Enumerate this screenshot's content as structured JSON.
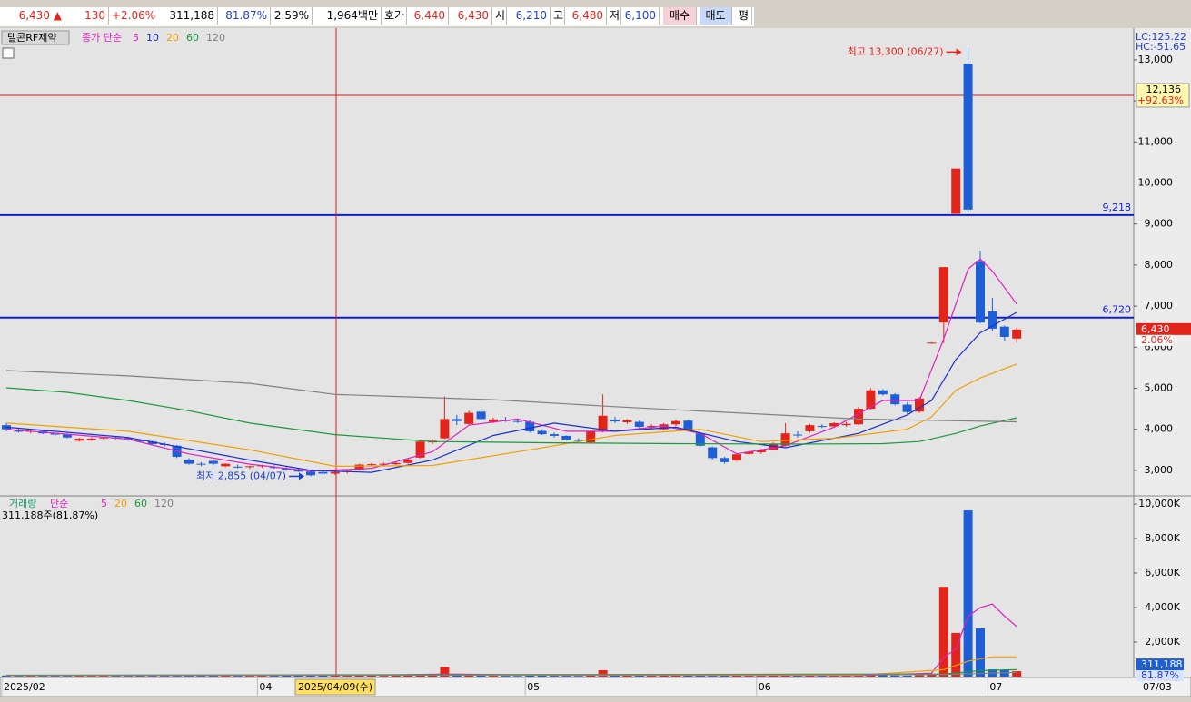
{
  "info_bar": [
    {
      "text": "6,430 ▲",
      "color": "#e3241b"
    },
    {
      "text": "130",
      "color": "#e3241b"
    },
    {
      "text": "+2.06%",
      "color": "#e3241b"
    },
    {
      "text": "311,188",
      "color": "#000000"
    },
    {
      "text": "81.87%",
      "color": "#1e3fd0"
    },
    {
      "text": "2.59%",
      "color": "#000000"
    },
    {
      "text": "1,964백만",
      "color": "#000000"
    },
    {
      "text": "호가",
      "color": "#000000"
    },
    {
      "text": "6,440",
      "color": "#e3241b"
    },
    {
      "text": "6,430",
      "color": "#e3241b"
    },
    {
      "text": "시",
      "color": "#000000"
    },
    {
      "text": "6,210",
      "color": "#1e3fd0"
    },
    {
      "text": "고",
      "color": "#000000"
    },
    {
      "text": "6,480",
      "color": "#e3241b"
    },
    {
      "text": "저",
      "color": "#000000"
    },
    {
      "text": "6,100",
      "color": "#1e3fd0"
    },
    {
      "text": "매수",
      "color": "#000000"
    },
    {
      "text": "매도",
      "color": "#000000"
    },
    {
      "text": "평",
      "color": "#000000"
    }
  ],
  "chart_data": [
    {
      "type": "candlestick",
      "title": "텔콘RF제약",
      "subtitle": "종가 단순",
      "indicators": [
        "LC:125.22",
        "HC:-51.65"
      ],
      "categories": [
        "2025/02",
        null,
        null,
        null,
        null,
        null,
        null,
        null,
        null,
        null,
        null,
        null,
        null,
        null,
        null,
        null,
        null,
        null,
        null,
        null,
        null,
        "04",
        null,
        null,
        null,
        null,
        null,
        null,
        null,
        null,
        null,
        null,
        null,
        null,
        null,
        null,
        null,
        null,
        null,
        null,
        null,
        null,
        null,
        "05",
        null,
        null,
        null,
        null,
        null,
        null,
        null,
        null,
        null,
        null,
        null,
        null,
        null,
        null,
        null,
        null,
        null,
        null,
        "06",
        null,
        null,
        null,
        null,
        null,
        null,
        null,
        null,
        null,
        null,
        null,
        null,
        null,
        null,
        null,
        null,
        null,
        null,
        "07",
        null,
        null
      ],
      "x_end_label": "07/03",
      "open": [
        4100,
        3990,
        3950,
        3960,
        3900,
        3870,
        3720,
        3730,
        3780,
        3800,
        3790,
        3730,
        3700,
        3640,
        3600,
        3260,
        3160,
        3230,
        3100,
        3090,
        3090,
        3100,
        3080,
        3050,
        3010,
        2970,
        2960,
        2920,
        2960,
        3020,
        3130,
        3150,
        3150,
        3180,
        3310,
        3680,
        3780,
        4250,
        4130,
        4430,
        4180,
        4220,
        4200,
        4180,
        3960,
        3880,
        3840,
        3740,
        3680,
        3950,
        4230,
        4170,
        4180,
        4060,
        4000,
        4120,
        4210,
        3900,
        3560,
        3300,
        3240,
        3400,
        3440,
        3500,
        3600,
        3870,
        3950,
        4080,
        4070,
        4100,
        4120,
        4500,
        4950,
        4850,
        4600,
        4430,
        6100,
        6600,
        9250,
        12900,
        8100,
        6870,
        6500,
        6210
      ],
      "high": [
        4150,
        4020,
        3990,
        3980,
        3930,
        3880,
        3790,
        3800,
        3820,
        3830,
        3820,
        3760,
        3720,
        3680,
        3620,
        3300,
        3200,
        3250,
        3170,
        3140,
        3110,
        3140,
        3120,
        3080,
        3050,
        3000,
        2980,
        2990,
        3020,
        3160,
        3180,
        3190,
        3200,
        3300,
        3720,
        3760,
        4800,
        4350,
        4450,
        4500,
        4280,
        4300,
        4260,
        4220,
        4000,
        3920,
        3850,
        3780,
        3990,
        4850,
        4300,
        4250,
        4220,
        4120,
        4150,
        4240,
        4230,
        3920,
        3580,
        3330,
        3420,
        3480,
        3520,
        3680,
        4150,
        3950,
        4130,
        4120,
        4170,
        4180,
        4550,
        5000,
        4980,
        4880,
        4650,
        4780,
        6120,
        7950,
        10350,
        13300,
        8350,
        7200,
        6530,
        6480
      ],
      "low": [
        3950,
        3920,
        3900,
        3880,
        3840,
        3780,
        3700,
        3720,
        3750,
        3760,
        3720,
        3680,
        3620,
        3580,
        3300,
        3140,
        3100,
        3120,
        3080,
        3050,
        3040,
        3060,
        3040,
        2990,
        2960,
        2855,
        2880,
        2890,
        2920,
        3000,
        3100,
        3110,
        3130,
        3160,
        3290,
        3640,
        3760,
        4100,
        4100,
        4220,
        4150,
        4180,
        4150,
        3920,
        3860,
        3800,
        3720,
        3680,
        3660,
        3920,
        4150,
        4130,
        4030,
        4020,
        3980,
        4080,
        3940,
        3580,
        3260,
        3160,
        3220,
        3360,
        3400,
        3480,
        3580,
        3800,
        3920,
        4030,
        4050,
        4060,
        4100,
        4480,
        4820,
        4580,
        4380,
        4400,
        6080,
        6100,
        9220,
        9300,
        6580,
        6400,
        6150,
        6100
      ],
      "close": [
        4000,
        3940,
        3960,
        3900,
        3870,
        3800,
        3770,
        3770,
        3800,
        3780,
        3740,
        3700,
        3640,
        3620,
        3330,
        3160,
        3140,
        3160,
        3160,
        3080,
        3100,
        3120,
        3060,
        3010,
        2970,
        2880,
        2920,
        2960,
        2990,
        3140,
        3150,
        3160,
        3180,
        3260,
        3700,
        3720,
        4250,
        4200,
        4400,
        4250,
        4240,
        4200,
        4180,
        3950,
        3880,
        3840,
        3750,
        3720,
        3950,
        4330,
        4190,
        4230,
        4060,
        4080,
        4120,
        4200,
        3960,
        3600,
        3300,
        3200,
        3390,
        3450,
        3500,
        3650,
        3900,
        3850,
        4100,
        4070,
        4150,
        4130,
        4500,
        4950,
        4850,
        4610,
        4420,
        4750,
        6110,
        7950,
        10350,
        9350,
        6600,
        6450,
        6250,
        6430
      ],
      "up_color": "#e3241b",
      "down_color": "#1e5fd8",
      "ylim": [
        2400,
        13750
      ],
      "yticks": [
        {
          "value": 3000,
          "label": "3,000"
        },
        {
          "value": 4000,
          "label": "4,000"
        },
        {
          "value": 5000,
          "label": "5,000"
        },
        {
          "value": 6000,
          "label": "6,000"
        },
        {
          "value": 7000,
          "label": "7,000"
        },
        {
          "value": 8000,
          "label": "8,000"
        },
        {
          "value": 9000,
          "label": "9,000"
        },
        {
          "value": 10000,
          "label": "10,000"
        },
        {
          "value": 11000,
          "label": "11,000"
        },
        {
          "value": 12000,
          "label": "12,000"
        },
        {
          "value": 13000,
          "label": "13,000"
        }
      ],
      "moving_averages": [
        {
          "name": "5",
          "color": "#e020c0",
          "x": [
            0,
            5,
            10,
            15,
            20,
            25,
            30,
            35,
            38,
            42,
            46,
            50,
            54,
            57,
            60,
            64,
            68,
            72,
            75,
            77,
            79,
            80,
            81,
            83
          ],
          "values": [
            4000,
            3880,
            3760,
            3400,
            3150,
            2980,
            3050,
            3450,
            4100,
            4250,
            3950,
            3950,
            4080,
            3900,
            3400,
            3600,
            4050,
            4700,
            4700,
            6200,
            7900,
            8150,
            7850,
            7050
          ]
        },
        {
          "name": "10",
          "color": "#1a2fd0",
          "x": [
            0,
            10,
            20,
            25,
            30,
            35,
            40,
            45,
            50,
            55,
            60,
            64,
            70,
            74,
            76,
            78,
            80,
            83
          ],
          "values": [
            4050,
            3800,
            3250,
            3000,
            2950,
            3250,
            3850,
            4150,
            3950,
            4050,
            3700,
            3550,
            3900,
            4350,
            4700,
            5700,
            6350,
            6850
          ]
        },
        {
          "name": "20",
          "color": "#f0a000",
          "x": [
            0,
            10,
            20,
            27,
            35,
            43,
            50,
            57,
            62,
            68,
            74,
            76,
            78,
            80,
            83
          ],
          "values": [
            4150,
            3950,
            3500,
            3100,
            3120,
            3500,
            3850,
            4000,
            3700,
            3780,
            4000,
            4300,
            4950,
            5250,
            5590
          ]
        },
        {
          "name": "60",
          "color": "#1a9a3a",
          "x": [
            0,
            5,
            10,
            15,
            20,
            27,
            35,
            45,
            55,
            65,
            72,
            75,
            78,
            80,
            83
          ],
          "values": [
            5010,
            4900,
            4700,
            4450,
            4150,
            3870,
            3700,
            3670,
            3650,
            3640,
            3650,
            3700,
            3900,
            4080,
            4280
          ]
        },
        {
          "name": "120",
          "color": "#808080",
          "x": [
            0,
            10,
            20,
            27,
            40,
            50,
            60,
            70,
            83
          ],
          "values": [
            5430,
            5300,
            5120,
            4850,
            4720,
            4550,
            4400,
            4250,
            4180
          ]
        }
      ],
      "hlines": [
        {
          "value": 9218,
          "label": "9,218",
          "color": "#1020d0"
        },
        {
          "value": 6720,
          "label": "6,720",
          "color": "#1020d0"
        }
      ],
      "annotations": [
        {
          "text": "최고 13,300 (06/27)",
          "value": 13300,
          "color": "#e3241b"
        },
        {
          "text": "최저 2,855 (04/07)",
          "value": 2855,
          "color": "#1e3fd0"
        }
      ],
      "crosshair": {
        "value": 12136,
        "label": "12,136",
        "change": "+92.63%",
        "date_label": "2025/04/09(수)"
      },
      "last_price": {
        "value": 6430,
        "label": "6,430",
        "change": "2.06%"
      }
    },
    {
      "type": "bar",
      "title": "거래량",
      "subtitle": "단순",
      "summary": "311,188주(81,87%)",
      "values": [
        60,
        50,
        40,
        45,
        50,
        55,
        60,
        40,
        45,
        50,
        40,
        55,
        45,
        50,
        70,
        80,
        60,
        50,
        55,
        50,
        45,
        50,
        45,
        60,
        55,
        80,
        60,
        70,
        50,
        65,
        55,
        45,
        50,
        70,
        130,
        80,
        560,
        90,
        100,
        60,
        50,
        45,
        40,
        60,
        55,
        50,
        45,
        40,
        90,
        370,
        80,
        60,
        55,
        50,
        60,
        55,
        60,
        70,
        50,
        60,
        50,
        45,
        45,
        60,
        120,
        50,
        70,
        50,
        55,
        60,
        120,
        140,
        80,
        70,
        60,
        80,
        130,
        5200,
        2530,
        9630,
        2790,
        420,
        370,
        311.188
      ],
      "ylim": [
        0,
        10370
      ],
      "yticks": [
        {
          "value": 2000,
          "label": "2,000K"
        },
        {
          "value": 4000,
          "label": "4,000K"
        },
        {
          "value": 6000,
          "label": "6,000K"
        },
        {
          "value": 8000,
          "label": "8,000K"
        },
        {
          "value": 10000,
          "label": "10,000K"
        }
      ],
      "moving_averages": [
        {
          "name": "5",
          "color": "#e020c0",
          "x": [
            0,
            30,
            36,
            45,
            70,
            76,
            77,
            78,
            79,
            80,
            81,
            82,
            83
          ],
          "values": [
            60,
            80,
            150,
            80,
            60,
            200,
            1100,
            1600,
            3500,
            4000,
            4200,
            3500,
            2900
          ]
        },
        {
          "name": "20",
          "color": "#f0a000",
          "x": [
            0,
            36,
            70,
            77,
            79,
            81,
            83
          ],
          "values": [
            60,
            100,
            80,
            400,
            900,
            1150,
            1150
          ]
        },
        {
          "name": "60",
          "color": "#1a9a3a",
          "x": [
            0,
            77,
            80,
            83
          ],
          "values": [
            80,
            150,
            350,
            400
          ]
        },
        {
          "name": "120",
          "color": "#808080",
          "x": [
            0,
            77,
            83
          ],
          "values": [
            70,
            120,
            250
          ]
        }
      ],
      "last_label": "311,188",
      "last_ratio": "81.87%"
    }
  ]
}
